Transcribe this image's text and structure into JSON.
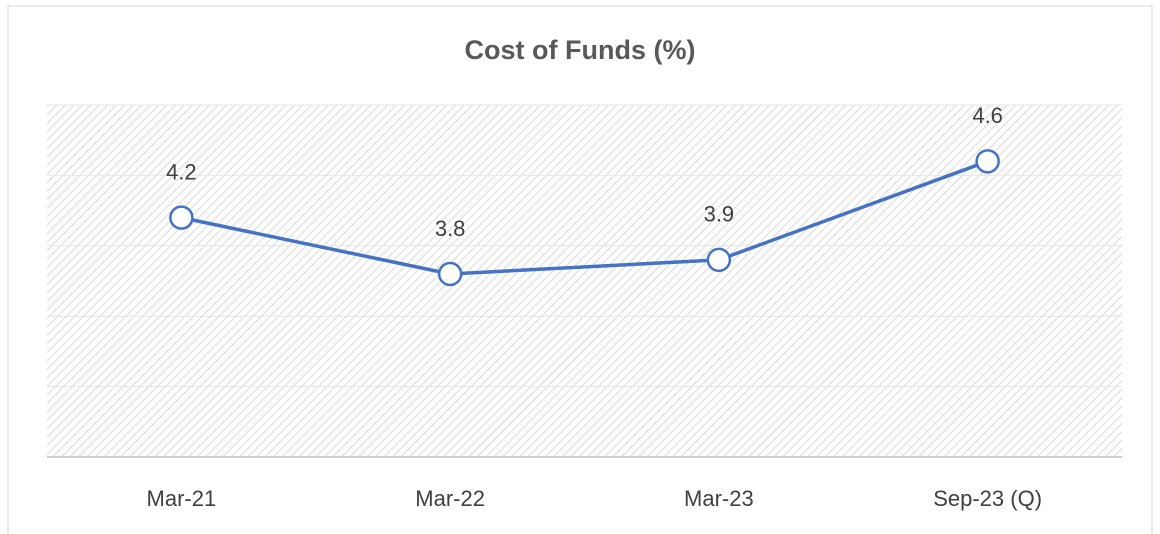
{
  "chart_data": {
    "type": "line",
    "title": "Cost of Funds (%)",
    "categories": [
      "Mar-21",
      "Mar-22",
      "Mar-23",
      "Sep-23 (Q)"
    ],
    "series": [
      {
        "name": "Cost of Funds",
        "color": "#4472c4",
        "values": [
          4.2,
          3.8,
          3.9,
          4.6
        ]
      }
    ],
    "ylim": [
      2.5,
      5.0
    ],
    "yticks": [
      2.5,
      3,
      3.5,
      4,
      4.5,
      5
    ],
    "grid": true
  }
}
